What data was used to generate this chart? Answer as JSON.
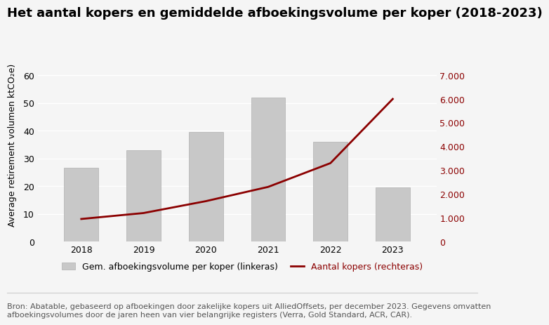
{
  "title": "Het aantal kopers en gemiddelde afboekingsvolume per koper (2018-2023)",
  "years": [
    2018,
    2019,
    2020,
    2021,
    2022,
    2023
  ],
  "bar_values": [
    26.5,
    33.0,
    39.5,
    52.0,
    36.0,
    19.5
  ],
  "line_values": [
    950,
    1200,
    1700,
    2300,
    3300,
    6000
  ],
  "bar_color": "#c8c8c8",
  "bar_edgecolor": "#b0b0b0",
  "line_color": "#8b0000",
  "left_ylabel": "Average retirement volumen ktCO₂e)",
  "left_ylim": [
    0,
    70
  ],
  "left_yticks": [
    0,
    10,
    20,
    30,
    40,
    50,
    60
  ],
  "right_ylim": [
    0,
    8167
  ],
  "right_yticks": [
    0,
    1000,
    2000,
    3000,
    4000,
    5000,
    6000,
    7000
  ],
  "legend_bar_label": "Gem. afboekingsvolume per koper (linkeras)",
  "legend_line_label": "Aantal kopers (rechteras)",
  "footnote": "Bron: Abatable, gebaseerd op afboekingen door zakelijke kopers uit AlliedOffsets, per december 2023. Gegevens omvatten\nafboekingsvolumes door de jaren heen van vier belangrijke registers (Verra, Gold Standard, ACR, CAR).",
  "background_color": "#f5f5f5",
  "title_fontsize": 13,
  "axis_fontsize": 9,
  "tick_fontsize": 9,
  "legend_fontsize": 9,
  "footnote_fontsize": 8
}
